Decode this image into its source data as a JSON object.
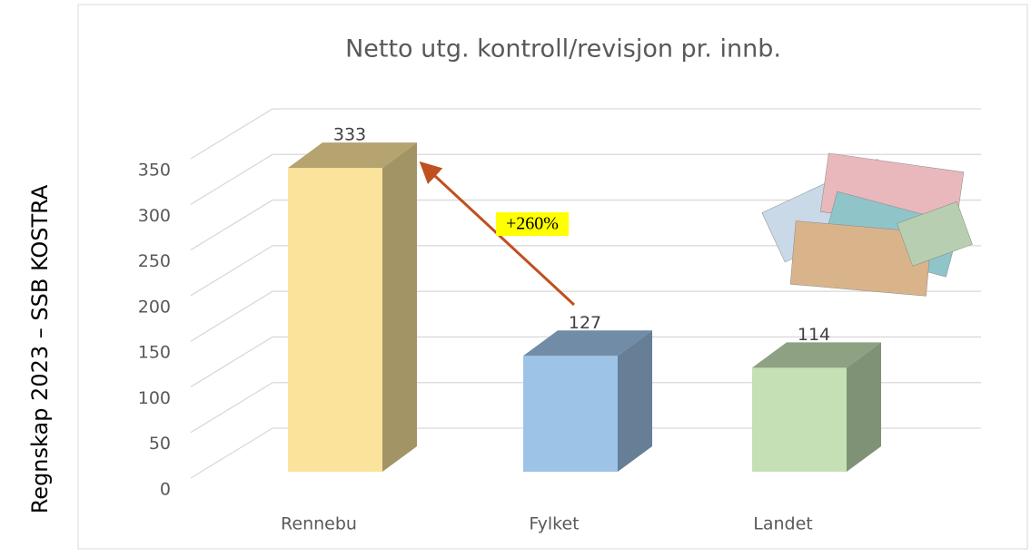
{
  "chart_data": {
    "type": "bar3d",
    "title": "Netto utg. kontroll/revisjon pr. innb.",
    "side_label": "Regnskap 2023 – SSB KOSTRA",
    "categories": [
      "Rennebu",
      "Fylket",
      "Landet"
    ],
    "values": [
      333,
      127,
      114
    ],
    "colors": [
      "#fbe39b",
      "#9dc3e6",
      "#c5e0b4"
    ],
    "ylim": [
      0,
      350
    ],
    "yticks": [
      0,
      50,
      100,
      150,
      200,
      250,
      300,
      350
    ],
    "grid": true,
    "annotation": "+260%",
    "annotation_color": "#c0501f"
  }
}
